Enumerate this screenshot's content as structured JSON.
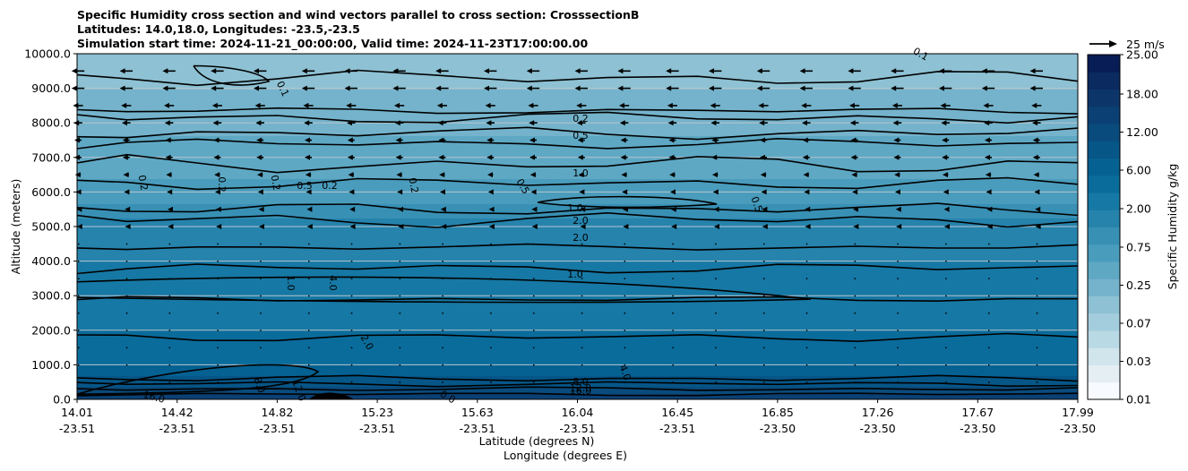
{
  "chart_data": {
    "type": "heatmap",
    "title_lines": [
      "Specific Humidity cross section and wind vectors parallel to cross section: CrosssectionB",
      "Latitudes: 14.0,18.0, Longitudes: -23.5,-23.5",
      "Simulation start time: 2024-11-21_00:00:00, Valid time: 2024-11-23T17:00:00.00"
    ],
    "ylabel": "Altitude (meters)",
    "xlabel_lat": "Latitude (degrees N)",
    "xlabel_lon": "Longitude (degrees E)",
    "ylim": [
      0,
      10000
    ],
    "y_ticks": [
      0,
      1000,
      2000,
      3000,
      4000,
      5000,
      6000,
      7000,
      8000,
      9000,
      10000
    ],
    "y_tick_labels": [
      "0.0",
      "1000.0",
      "2000.0",
      "3000.0",
      "4000.0",
      "5000.0",
      "6000.0",
      "7000.0",
      "8000.0",
      "9000.0",
      "10000.0"
    ],
    "x_ticks": [
      {
        "lat": "14.01",
        "lon": "-23.51"
      },
      {
        "lat": "14.42",
        "lon": "-23.51"
      },
      {
        "lat": "14.82",
        "lon": "-23.51"
      },
      {
        "lat": "15.23",
        "lon": "-23.51"
      },
      {
        "lat": "15.63",
        "lon": "-23.51"
      },
      {
        "lat": "16.04",
        "lon": "-23.51"
      },
      {
        "lat": "16.45",
        "lon": "-23.51"
      },
      {
        "lat": "16.85",
        "lon": "-23.50"
      },
      {
        "lat": "17.26",
        "lon": "-23.50"
      },
      {
        "lat": "17.67",
        "lon": "-23.50"
      },
      {
        "lat": "17.99",
        "lon": "-23.50"
      }
    ],
    "grid": "horizontal",
    "colorbar": {
      "label": "Specific Humidity g/kg",
      "tick_labels": [
        "0.01",
        "0.03",
        "0.07",
        "0.25",
        "0.75",
        "2.00",
        "6.00",
        "12.00",
        "18.00",
        "25.00"
      ],
      "colors": [
        "#f7fbff",
        "#e4eef3",
        "#d0e5ec",
        "#b9d9e4",
        "#a3cddc",
        "#8dc1d3",
        "#74b3cb",
        "#5ea8c4",
        "#4a9cbc",
        "#3890b5",
        "#2583ac",
        "#1678a4",
        "#0a6c9b",
        "#056192",
        "#065688",
        "#0a4b7d",
        "#0b4074",
        "#0c356a",
        "#0a2a60",
        "#081d55"
      ]
    },
    "wind_reference": {
      "label": "25 m/s"
    },
    "humidity_field_g_kg": {
      "altitudes_m": [
        0,
        250,
        500,
        1000,
        2000,
        3000,
        4000,
        5000,
        6000,
        7000,
        8000,
        9000,
        10000
      ],
      "values": [
        16.0,
        14.0,
        10.0,
        6.0,
        4.0,
        2.5,
        2.0,
        1.2,
        0.6,
        0.35,
        0.2,
        0.1,
        0.08
      ]
    },
    "contour_labels": [
      "0.1",
      "0.2",
      "0.5",
      "1.0",
      "0.2",
      "0.2",
      "0.2",
      "0.2",
      "0.2",
      "0.5",
      "0.5",
      "0.5",
      "1.0",
      "2.0",
      "2.0",
      "1.0",
      "1.0",
      "4.0",
      "2.0",
      "4.0",
      "8.0",
      "12.0",
      "16.0",
      "16.0",
      "0.0",
      "12.0",
      "8.0",
      "0.1"
    ],
    "wind_rows_m": [
      9500,
      9000,
      8500,
      8000,
      7500,
      7000,
      6500,
      6000,
      5500,
      5000,
      4500,
      4000,
      3500,
      3000,
      2500,
      2000,
      1500,
      1000,
      500
    ],
    "wind_u_m_s": [
      -9,
      -9,
      -7,
      -6,
      -5,
      -5,
      -4,
      -3,
      -2,
      -1.5,
      -1,
      -0.5,
      -0.3,
      -0.2,
      -0.2,
      -0.2,
      -0.2,
      -0.2,
      -0.2
    ]
  }
}
